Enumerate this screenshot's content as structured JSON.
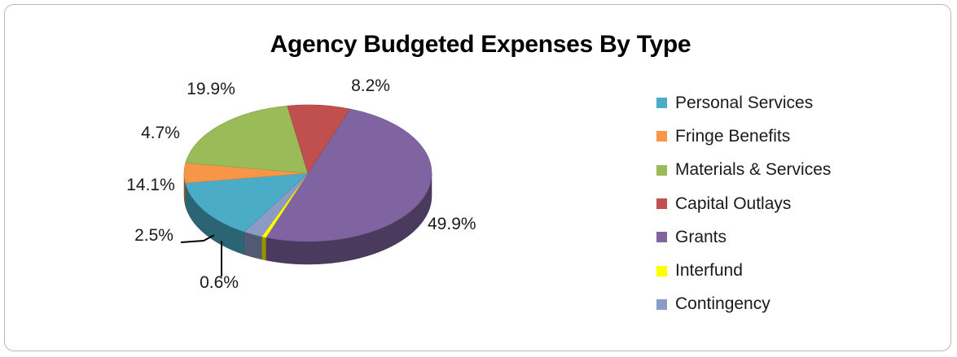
{
  "chart_data": {
    "type": "pie",
    "title": "Agency Budgeted Expenses By Type",
    "series": [
      {
        "name": "Personal Services",
        "value": 14.1,
        "label": "14.1%",
        "color": "#4aacc6"
      },
      {
        "name": "Fringe Benefits",
        "value": 4.7,
        "label": "4.7%",
        "color": "#f79646"
      },
      {
        "name": "Materials & Services",
        "value": 19.9,
        "label": "19.9%",
        "color": "#9bbb59"
      },
      {
        "name": "Capital Outlays",
        "value": 8.2,
        "label": "8.2%",
        "color": "#c0504d"
      },
      {
        "name": "Grants",
        "value": 49.9,
        "label": "49.9%",
        "color": "#8064a2"
      },
      {
        "name": "Interfund",
        "value": 0.6,
        "label": "0.6%",
        "color": "#ffff00"
      },
      {
        "name": "Contingency",
        "value": 2.5,
        "label": "2.5%",
        "color": "#8c9bc6"
      }
    ],
    "legend_position": "right",
    "style": "3d-pie"
  }
}
